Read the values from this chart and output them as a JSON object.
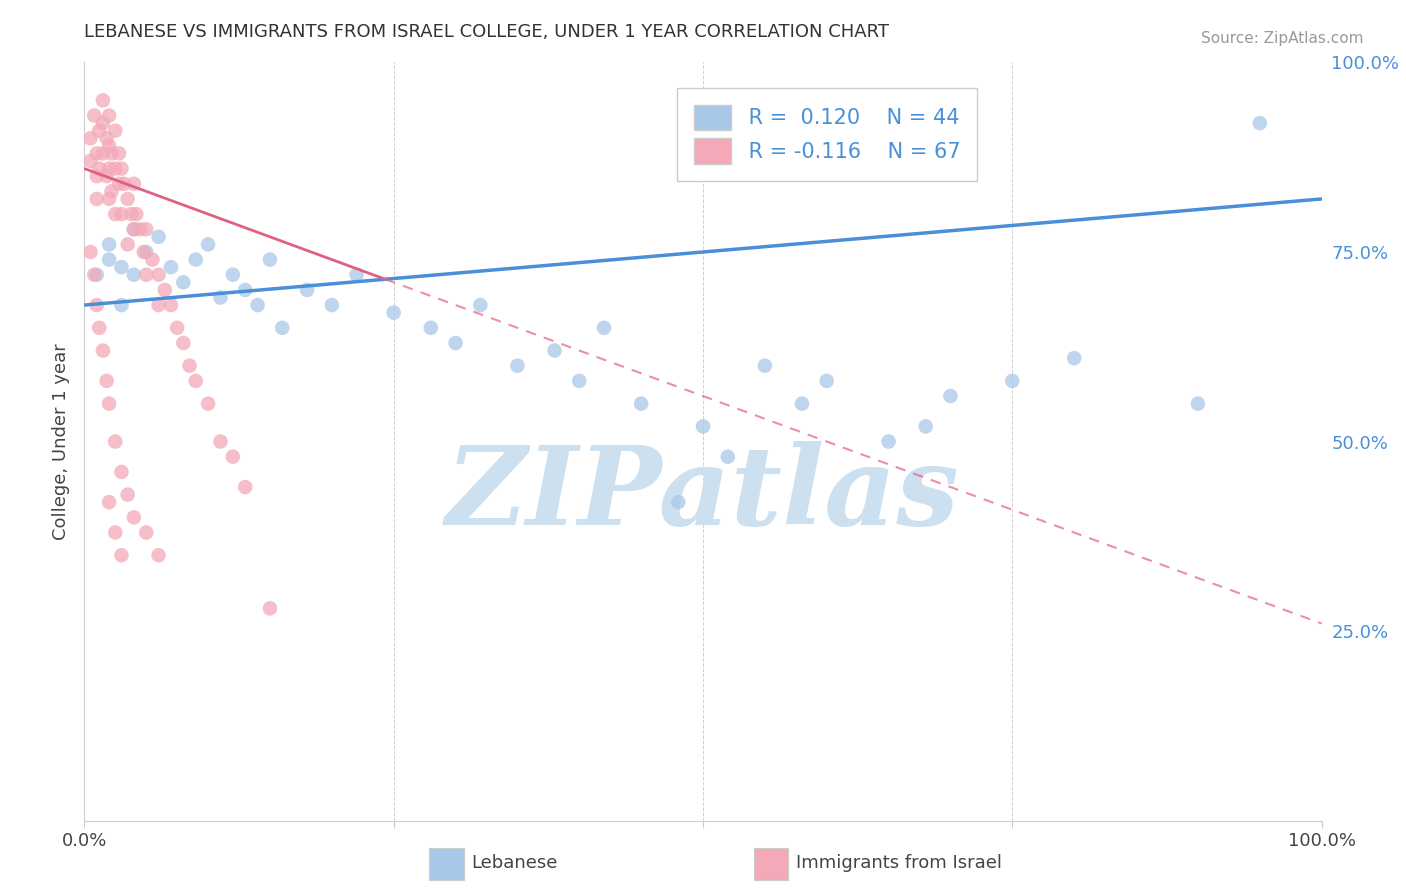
{
  "title": "LEBANESE VS IMMIGRANTS FROM ISRAEL COLLEGE, UNDER 1 YEAR CORRELATION CHART",
  "source_text": "Source: ZipAtlas.com",
  "ylabel": "College, Under 1 year",
  "xlim": [
    0,
    1
  ],
  "ylim": [
    0,
    1
  ],
  "xticks": [
    0,
    0.25,
    0.5,
    0.75,
    1.0
  ],
  "xticklabels": [
    "0.0%",
    "",
    "",
    "",
    "100.0%"
  ],
  "yticks_right": [
    0.25,
    0.5,
    0.75,
    1.0
  ],
  "yticklabels_right": [
    "25.0%",
    "50.0%",
    "75.0%",
    "100.0%"
  ],
  "legend_labels": [
    "Lebanese",
    "Immigrants from Israel"
  ],
  "blue_R": 0.12,
  "blue_N": 44,
  "pink_R": -0.116,
  "pink_N": 67,
  "blue_color": "#a8c8e8",
  "pink_color": "#f4a8b8",
  "blue_line_color": "#4a90d9",
  "pink_line_color": "#e06080",
  "watermark": "ZIPatlas",
  "watermark_color": "#cce0f0",
  "background_color": "#ffffff",
  "grid_color": "#cccccc",
  "blue_line_x0": 0.0,
  "blue_line_y0": 0.68,
  "blue_line_x1": 1.0,
  "blue_line_y1": 0.82,
  "pink_line_x0": 0.0,
  "pink_line_y0": 0.86,
  "pink_line_x1": 1.0,
  "pink_line_y1": 0.26,
  "blue_scatter_x": [
    0.01,
    0.02,
    0.02,
    0.03,
    0.03,
    0.04,
    0.04,
    0.05,
    0.06,
    0.07,
    0.08,
    0.09,
    0.1,
    0.11,
    0.12,
    0.13,
    0.14,
    0.15,
    0.16,
    0.18,
    0.2,
    0.22,
    0.25,
    0.28,
    0.3,
    0.32,
    0.35,
    0.38,
    0.4,
    0.42,
    0.45,
    0.48,
    0.5,
    0.52,
    0.55,
    0.58,
    0.6,
    0.65,
    0.68,
    0.7,
    0.75,
    0.8,
    0.9,
    0.95
  ],
  "blue_scatter_y": [
    0.72,
    0.74,
    0.76,
    0.68,
    0.73,
    0.78,
    0.72,
    0.75,
    0.77,
    0.73,
    0.71,
    0.74,
    0.76,
    0.69,
    0.72,
    0.7,
    0.68,
    0.74,
    0.65,
    0.7,
    0.68,
    0.72,
    0.67,
    0.65,
    0.63,
    0.68,
    0.6,
    0.62,
    0.58,
    0.65,
    0.55,
    0.42,
    0.52,
    0.48,
    0.6,
    0.55,
    0.58,
    0.5,
    0.52,
    0.56,
    0.58,
    0.61,
    0.55,
    0.92
  ],
  "pink_scatter_x": [
    0.005,
    0.005,
    0.008,
    0.01,
    0.01,
    0.01,
    0.012,
    0.012,
    0.015,
    0.015,
    0.015,
    0.018,
    0.018,
    0.02,
    0.02,
    0.02,
    0.02,
    0.022,
    0.022,
    0.025,
    0.025,
    0.025,
    0.028,
    0.028,
    0.03,
    0.03,
    0.032,
    0.035,
    0.035,
    0.038,
    0.04,
    0.04,
    0.042,
    0.045,
    0.048,
    0.05,
    0.05,
    0.055,
    0.06,
    0.06,
    0.065,
    0.07,
    0.075,
    0.08,
    0.085,
    0.09,
    0.1,
    0.11,
    0.12,
    0.13,
    0.005,
    0.008,
    0.01,
    0.012,
    0.015,
    0.018,
    0.02,
    0.025,
    0.03,
    0.035,
    0.04,
    0.05,
    0.06,
    0.02,
    0.025,
    0.03,
    0.15
  ],
  "pink_scatter_y": [
    0.9,
    0.87,
    0.93,
    0.88,
    0.85,
    0.82,
    0.91,
    0.86,
    0.95,
    0.92,
    0.88,
    0.9,
    0.85,
    0.93,
    0.89,
    0.86,
    0.82,
    0.88,
    0.83,
    0.91,
    0.86,
    0.8,
    0.88,
    0.84,
    0.86,
    0.8,
    0.84,
    0.82,
    0.76,
    0.8,
    0.84,
    0.78,
    0.8,
    0.78,
    0.75,
    0.78,
    0.72,
    0.74,
    0.72,
    0.68,
    0.7,
    0.68,
    0.65,
    0.63,
    0.6,
    0.58,
    0.55,
    0.5,
    0.48,
    0.44,
    0.75,
    0.72,
    0.68,
    0.65,
    0.62,
    0.58,
    0.55,
    0.5,
    0.46,
    0.43,
    0.4,
    0.38,
    0.35,
    0.42,
    0.38,
    0.35,
    0.28
  ]
}
